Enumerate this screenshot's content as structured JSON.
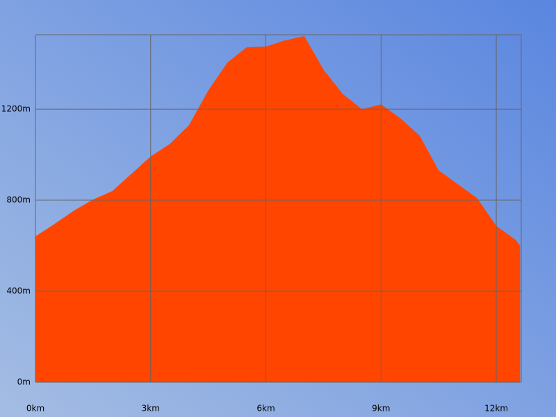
{
  "chart_data": {
    "type": "area",
    "x": [
      0,
      0.5,
      1.0,
      1.5,
      2.0,
      2.5,
      3.0,
      3.5,
      4.0,
      4.5,
      5.0,
      5.5,
      6.0,
      6.5,
      7.0,
      7.5,
      8.0,
      8.5,
      9.0,
      9.5,
      10.0,
      10.5,
      11.0,
      11.5,
      12.0,
      12.5,
      12.62
    ],
    "series": [
      {
        "color": "#ff4500",
        "values": [
          641,
          696,
          754,
          803,
          840,
          916,
          992,
          1047,
          1130,
          1282,
          1405,
          1472,
          1475,
          1502,
          1521,
          1374,
          1267,
          1200,
          1221,
          1160,
          1084,
          931,
          870,
          809,
          687,
          626,
          600
        ]
      }
    ],
    "xlim": [
      0,
      12.65
    ],
    "ylim": [
      0,
      1527
    ],
    "xticks": [
      {
        "value": 0,
        "label": "0km"
      },
      {
        "value": 3,
        "label": "3km"
      },
      {
        "value": 6,
        "label": "6km"
      },
      {
        "value": 9,
        "label": "9km"
      },
      {
        "value": 12,
        "label": "12km"
      }
    ],
    "yticks": [
      {
        "value": 0,
        "label": "0m"
      },
      {
        "value": 400,
        "label": "400m"
      },
      {
        "value": 800,
        "label": "800m"
      },
      {
        "value": 1200,
        "label": "1200m"
      }
    ],
    "grid": true
  }
}
